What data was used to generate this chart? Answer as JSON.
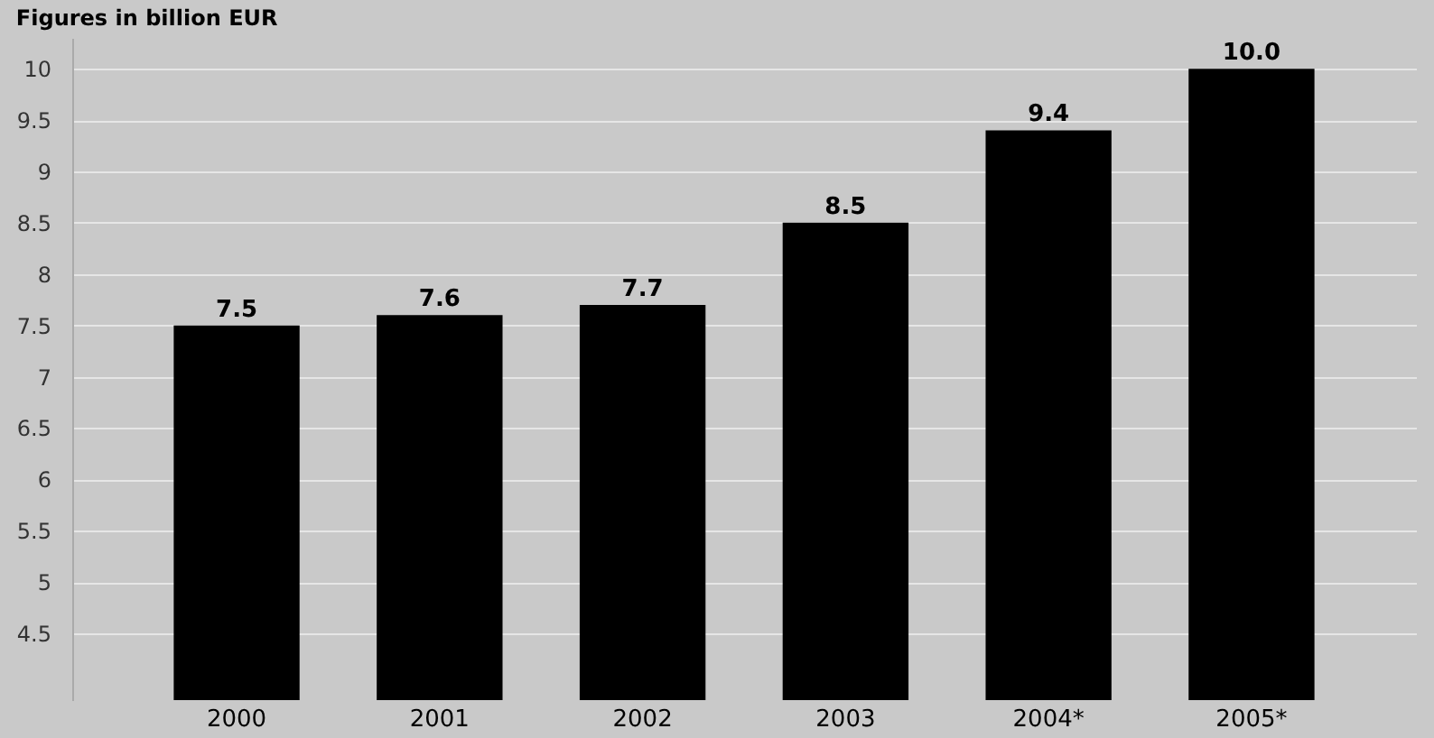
{
  "chart_data": {
    "type": "bar",
    "title": "Figures in billion EUR",
    "categories": [
      "2000",
      "2001",
      "2002",
      "2003",
      "2004*",
      "2005*"
    ],
    "values": [
      7.5,
      7.6,
      7.7,
      8.5,
      9.4,
      10.0
    ],
    "value_labels": [
      "7.5",
      "7.6",
      "7.7",
      "8.5",
      "9.4",
      "10.0"
    ],
    "color": "#000000",
    "ylim": [
      3.85,
      10.3
    ],
    "yticks": [
      4.5,
      5,
      5.5,
      6,
      6.5,
      7,
      7.5,
      8,
      8.5,
      9,
      9.5,
      10
    ],
    "grid": "y"
  }
}
